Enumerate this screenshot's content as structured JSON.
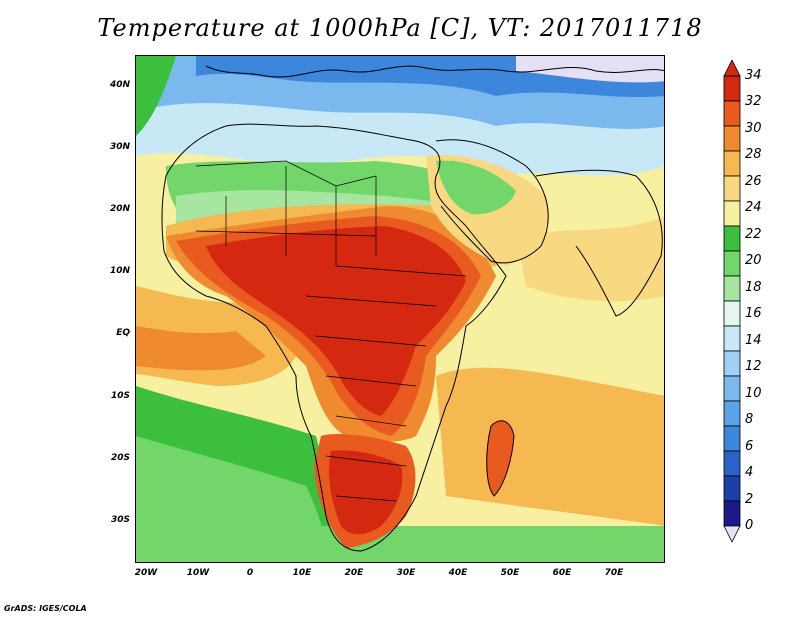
{
  "title": "Temperature at 1000hPa [C], VT: 2017011718",
  "credit": "GrADS: IGES/COLA",
  "lat_labels": [
    "40N",
    "30N",
    "20N",
    "10N",
    "EQ",
    "10S",
    "20S",
    "30S"
  ],
  "lon_labels": [
    "20W",
    "10W",
    "0",
    "10E",
    "20E",
    "30E",
    "40E",
    "50E",
    "60E",
    "70E"
  ],
  "colorbar": {
    "levels": [
      "0",
      "2",
      "4",
      "6",
      "8",
      "10",
      "12",
      "14",
      "16",
      "18",
      "20",
      "22",
      "24",
      "26",
      "28",
      "30",
      "32",
      "34"
    ],
    "colors": [
      "#1a1a8a",
      "#1f3fa8",
      "#2a63c8",
      "#3c86dc",
      "#5aa3e8",
      "#7ab8ee",
      "#a0d0f4",
      "#c8e8f6",
      "#e6f7f2",
      "#a6e6a0",
      "#72d66a",
      "#3cbf3c",
      "#f6f0a0",
      "#f8d880",
      "#f6b850",
      "#f08a30",
      "#e85a20",
      "#d42810"
    ],
    "over_color": "#d42810",
    "under_color": "#e6e0f6"
  },
  "map": {
    "palette": {
      "ocean_cool": "#5aa3e8",
      "med": "#7ab8ee",
      "north_africa": "#c8e8f6",
      "sahara_green": "#72d66a",
      "warm_ocean": "#f8d880",
      "hot": "#f6b850",
      "hotter": "#f08a30",
      "hottest": "#e85a20",
      "peak": "#d42810",
      "atlantic_south": "#3cbf3c",
      "cool_north": "#2a63c8"
    }
  }
}
